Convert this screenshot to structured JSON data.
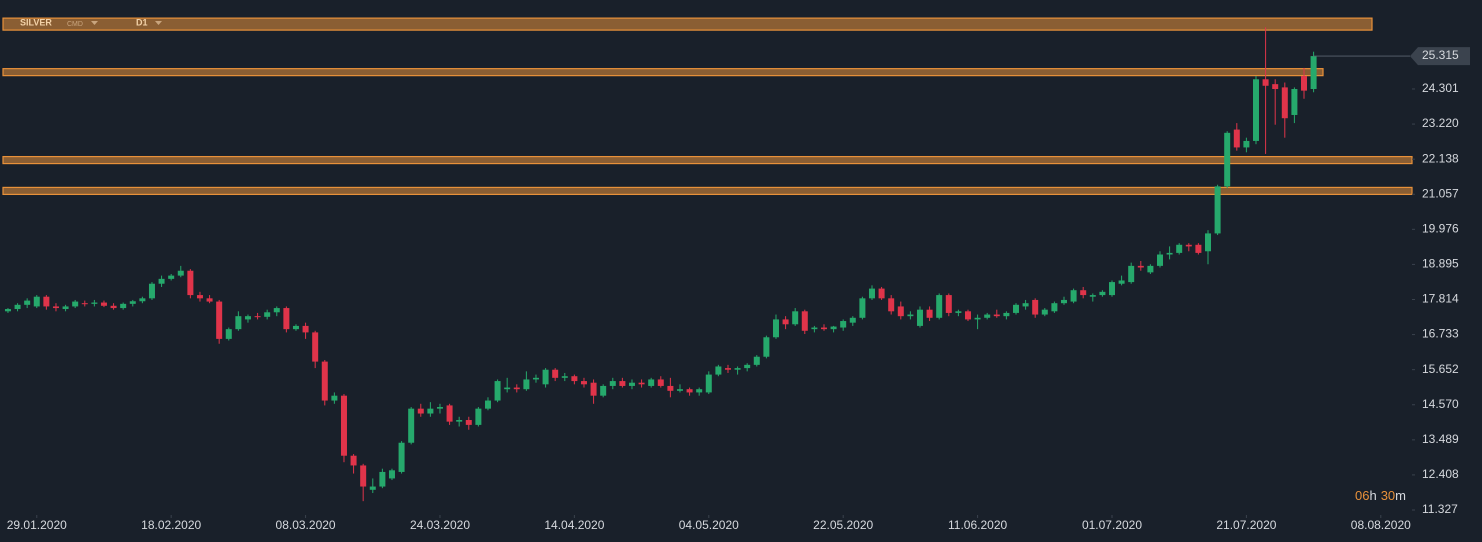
{
  "header": {
    "symbol": "SILVER",
    "market": "CMD",
    "timeframe": "D1"
  },
  "countdown": {
    "hours": "06",
    "hours_unit": "h",
    "minutes": "30",
    "minutes_unit": "m"
  },
  "chart_data": {
    "type": "candlestick",
    "up_color": "#26a96c",
    "down_color": "#e0344a",
    "grid": false,
    "xlim": [
      -0.83,
      146.25
    ],
    "xticks": [
      {
        "value": 3,
        "label": "29.01.2020"
      },
      {
        "value": 17,
        "label": "18.02.2020"
      },
      {
        "value": 31,
        "label": "08.03.2020"
      },
      {
        "value": 45,
        "label": "24.03.2020"
      },
      {
        "value": 59,
        "label": "14.04.2020"
      },
      {
        "value": 73,
        "label": "04.05.2020"
      },
      {
        "value": 87,
        "label": "22.05.2020"
      },
      {
        "value": 101,
        "label": "11.06.2020"
      },
      {
        "value": 115,
        "label": "01.07.2020"
      },
      {
        "value": 129,
        "label": "21.07.2020"
      },
      {
        "value": 143,
        "label": "08.08.2020"
      }
    ],
    "ylim": [
      11.173,
      27.043
    ],
    "yticks": [
      24.301,
      {
        "value": 23.22,
        "label": "23.220"
      },
      22.138,
      21.057,
      19.976,
      18.895,
      17.814,
      16.733,
      15.652,
      {
        "value": 14.57,
        "label": "14.570"
      },
      13.489,
      12.408,
      11.327
    ],
    "last_price": 25.315,
    "level_color": "#e8913a",
    "levels": [
      26.3,
      24.82,
      22.11,
      21.16
    ],
    "candles": [
      [
        17.45,
        17.55,
        17.4,
        17.52
      ],
      [
        17.52,
        17.7,
        17.45,
        17.65
      ],
      [
        17.65,
        17.85,
        17.55,
        17.78
      ],
      [
        17.6,
        17.95,
        17.55,
        17.9
      ],
      [
        17.9,
        17.95,
        17.5,
        17.6
      ],
      [
        17.6,
        17.7,
        17.45,
        17.55
      ],
      [
        17.52,
        17.65,
        17.45,
        17.6
      ],
      [
        17.6,
        17.8,
        17.55,
        17.75
      ],
      [
        17.7,
        17.78,
        17.6,
        17.68
      ],
      [
        17.68,
        17.8,
        17.6,
        17.72
      ],
      [
        17.72,
        17.78,
        17.58,
        17.62
      ],
      [
        17.62,
        17.7,
        17.5,
        17.55
      ],
      [
        17.55,
        17.72,
        17.5,
        17.68
      ],
      [
        17.68,
        17.8,
        17.6,
        17.76
      ],
      [
        17.76,
        17.9,
        17.7,
        17.85
      ],
      [
        17.85,
        18.35,
        17.8,
        18.3
      ],
      [
        18.3,
        18.55,
        18.2,
        18.45
      ],
      [
        18.45,
        18.6,
        18.4,
        18.55
      ],
      [
        18.55,
        18.85,
        18.5,
        18.7
      ],
      [
        18.7,
        18.75,
        17.85,
        17.95
      ],
      [
        17.95,
        18.05,
        17.75,
        17.85
      ],
      [
        17.85,
        17.95,
        17.7,
        17.75
      ],
      [
        17.75,
        17.8,
        16.45,
        16.6
      ],
      [
        16.6,
        16.95,
        16.55,
        16.9
      ],
      [
        16.9,
        17.45,
        16.85,
        17.3
      ],
      [
        17.2,
        17.35,
        17.1,
        17.3
      ],
      [
        17.3,
        17.4,
        17.2,
        17.28
      ],
      [
        17.28,
        17.5,
        17.2,
        17.42
      ],
      [
        17.42,
        17.6,
        17.3,
        17.55
      ],
      [
        17.55,
        17.6,
        16.8,
        16.9
      ],
      [
        16.9,
        17.05,
        16.85,
        17.0
      ],
      [
        17.0,
        17.1,
        16.6,
        16.8
      ],
      [
        16.8,
        16.85,
        15.7,
        15.9
      ],
      [
        15.9,
        15.95,
        14.55,
        14.7
      ],
      [
        14.7,
        14.95,
        14.6,
        14.85
      ],
      [
        14.85,
        14.9,
        12.8,
        13.0
      ],
      [
        13.0,
        13.05,
        12.45,
        12.7
      ],
      [
        12.7,
        12.75,
        11.6,
        12.05
      ],
      [
        11.95,
        12.3,
        11.85,
        12.05
      ],
      [
        12.05,
        12.6,
        12.0,
        12.5
      ],
      [
        12.3,
        12.6,
        12.25,
        12.55
      ],
      [
        12.5,
        13.45,
        12.45,
        13.4
      ],
      [
        13.4,
        14.5,
        13.35,
        14.45
      ],
      [
        14.45,
        14.6,
        14.2,
        14.3
      ],
      [
        14.3,
        14.65,
        14.2,
        14.45
      ],
      [
        14.45,
        14.6,
        14.3,
        14.5
      ],
      [
        14.55,
        14.6,
        13.95,
        14.05
      ],
      [
        14.05,
        14.2,
        13.9,
        14.1
      ],
      [
        14.1,
        14.2,
        13.8,
        13.95
      ],
      [
        13.95,
        14.5,
        13.9,
        14.45
      ],
      [
        14.45,
        14.8,
        14.4,
        14.7
      ],
      [
        14.7,
        15.35,
        14.65,
        15.3
      ],
      [
        15.05,
        15.4,
        14.95,
        15.1
      ],
      [
        15.1,
        15.2,
        14.95,
        15.05
      ],
      [
        15.05,
        15.6,
        15.0,
        15.35
      ],
      [
        15.35,
        15.5,
        15.25,
        15.4
      ],
      [
        15.2,
        15.7,
        15.1,
        15.65
      ],
      [
        15.65,
        15.7,
        15.3,
        15.4
      ],
      [
        15.4,
        15.55,
        15.3,
        15.45
      ],
      [
        15.45,
        15.5,
        15.2,
        15.3
      ],
      [
        15.3,
        15.4,
        15.1,
        15.2
      ],
      [
        15.25,
        15.35,
        14.6,
        14.85
      ],
      [
        14.85,
        15.2,
        14.8,
        15.15
      ],
      [
        15.15,
        15.4,
        15.05,
        15.3
      ],
      [
        15.3,
        15.4,
        15.1,
        15.15
      ],
      [
        15.15,
        15.35,
        15.05,
        15.25
      ],
      [
        15.25,
        15.35,
        15.1,
        15.2
      ],
      [
        15.15,
        15.4,
        15.1,
        15.35
      ],
      [
        15.35,
        15.45,
        15.1,
        15.15
      ],
      [
        15.15,
        15.4,
        14.8,
        15.0
      ],
      [
        15.0,
        15.2,
        14.95,
        15.05
      ],
      [
        15.05,
        15.1,
        14.85,
        14.95
      ],
      [
        14.95,
        15.1,
        14.85,
        15.05
      ],
      [
        14.95,
        15.6,
        14.9,
        15.5
      ],
      [
        15.5,
        15.8,
        15.45,
        15.75
      ],
      [
        15.7,
        15.8,
        15.55,
        15.65
      ],
      [
        15.65,
        15.75,
        15.5,
        15.7
      ],
      [
        15.7,
        15.85,
        15.6,
        15.8
      ],
      [
        15.8,
        16.1,
        15.75,
        16.05
      ],
      [
        16.05,
        16.7,
        16.0,
        16.65
      ],
      [
        16.65,
        17.35,
        16.6,
        17.2
      ],
      [
        17.2,
        17.3,
        16.9,
        17.05
      ],
      [
        17.05,
        17.55,
        17.0,
        17.45
      ],
      [
        17.45,
        17.5,
        16.75,
        16.85
      ],
      [
        16.9,
        17.0,
        16.8,
        16.95
      ],
      [
        16.95,
        17.05,
        16.85,
        16.9
      ],
      [
        16.9,
        17.0,
        16.8,
        16.98
      ],
      [
        16.95,
        17.2,
        16.85,
        17.15
      ],
      [
        17.1,
        17.3,
        17.0,
        17.25
      ],
      [
        17.25,
        17.9,
        17.2,
        17.85
      ],
      [
        17.85,
        18.25,
        17.8,
        18.15
      ],
      [
        18.15,
        18.2,
        17.8,
        17.85
      ],
      [
        17.85,
        17.95,
        17.35,
        17.45
      ],
      [
        17.6,
        17.75,
        17.2,
        17.3
      ],
      [
        17.3,
        17.45,
        17.2,
        17.35
      ],
      [
        17.0,
        17.6,
        16.95,
        17.5
      ],
      [
        17.5,
        17.6,
        17.15,
        17.25
      ],
      [
        17.25,
        18.0,
        17.2,
        17.95
      ],
      [
        17.95,
        18.0,
        17.3,
        17.4
      ],
      [
        17.4,
        17.5,
        17.3,
        17.45
      ],
      [
        17.45,
        17.5,
        17.15,
        17.2
      ],
      [
        17.2,
        17.35,
        16.9,
        17.25
      ],
      [
        17.25,
        17.4,
        17.2,
        17.35
      ],
      [
        17.35,
        17.5,
        17.25,
        17.3
      ],
      [
        17.3,
        17.45,
        17.2,
        17.4
      ],
      [
        17.4,
        17.7,
        17.35,
        17.65
      ],
      [
        17.6,
        17.8,
        17.5,
        17.7
      ],
      [
        17.8,
        17.85,
        17.25,
        17.35
      ],
      [
        17.35,
        17.55,
        17.3,
        17.5
      ],
      [
        17.45,
        17.75,
        17.4,
        17.7
      ],
      [
        17.7,
        17.9,
        17.65,
        17.8
      ],
      [
        17.75,
        18.15,
        17.7,
        18.1
      ],
      [
        18.1,
        18.2,
        17.85,
        17.95
      ],
      [
        17.9,
        18.0,
        17.75,
        17.95
      ],
      [
        17.95,
        18.1,
        17.9,
        18.05
      ],
      [
        17.95,
        18.4,
        17.9,
        18.35
      ],
      [
        18.3,
        18.55,
        18.25,
        18.4
      ],
      [
        18.35,
        18.95,
        18.3,
        18.85
      ],
      [
        18.85,
        19.0,
        18.7,
        18.8
      ],
      [
        18.65,
        18.9,
        18.6,
        18.85
      ],
      [
        18.85,
        19.3,
        18.8,
        19.2
      ],
      [
        19.2,
        19.45,
        19.05,
        19.25
      ],
      [
        19.25,
        19.55,
        19.2,
        19.5
      ],
      [
        19.5,
        19.55,
        19.3,
        19.45
      ],
      [
        19.5,
        19.55,
        19.2,
        19.25
      ],
      [
        19.3,
        19.95,
        18.9,
        19.85
      ],
      [
        19.85,
        21.35,
        19.8,
        21.3
      ],
      [
        21.3,
        23.0,
        21.25,
        22.95
      ],
      [
        23.05,
        23.25,
        22.4,
        22.5
      ],
      [
        22.5,
        22.8,
        22.35,
        22.7
      ],
      [
        22.7,
        24.7,
        22.6,
        24.6
      ],
      [
        24.6,
        26.2,
        22.3,
        24.4
      ],
      [
        24.45,
        24.6,
        23.2,
        24.3
      ],
      [
        24.35,
        24.5,
        22.8,
        23.4
      ],
      [
        23.5,
        24.35,
        23.25,
        24.3
      ],
      [
        24.7,
        24.95,
        24.0,
        24.25
      ],
      [
        24.3,
        25.45,
        24.2,
        25.315
      ]
    ]
  }
}
